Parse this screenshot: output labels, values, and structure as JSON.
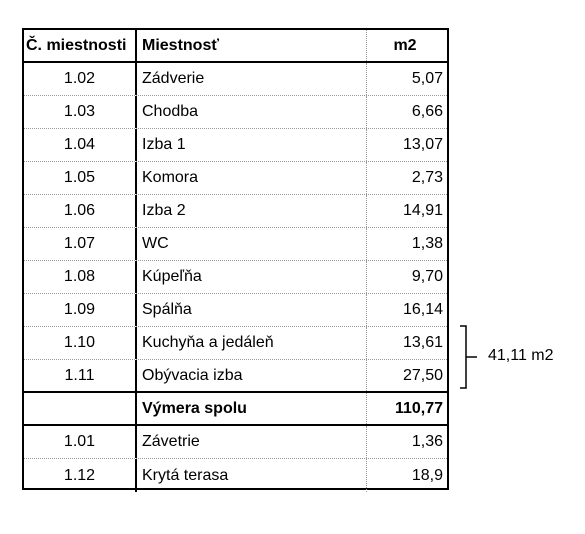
{
  "table": {
    "header": [
      "Č. miestnosti",
      "Miestnosť",
      "m2"
    ],
    "rows": [
      [
        "1.02",
        "Zádverie",
        "5,07"
      ],
      [
        "1.03",
        "Chodba",
        "6,66"
      ],
      [
        "1.04",
        "Izba 1",
        "13,07"
      ],
      [
        "1.05",
        "Komora",
        "2,73"
      ],
      [
        "1.06",
        "Izba 2",
        "14,91"
      ],
      [
        "1.07",
        "WC",
        "1,38"
      ],
      [
        "1.08",
        "Kúpeľňa",
        "9,70"
      ],
      [
        "1.09",
        "Spálňa",
        "16,14"
      ],
      [
        "1.10",
        "Kuchyňa a jedáleň",
        "13,61"
      ],
      [
        "1.11",
        "Obývacia izba",
        "27,50"
      ]
    ],
    "total": {
      "label": "Výmera spolu",
      "value": "110,77"
    },
    "extra_rows": [
      [
        "1.01",
        "Závetrie",
        "1,36"
      ],
      [
        "1.12",
        "Krytá terasa",
        "18,9"
      ]
    ]
  },
  "annotation": "41,11 m2"
}
